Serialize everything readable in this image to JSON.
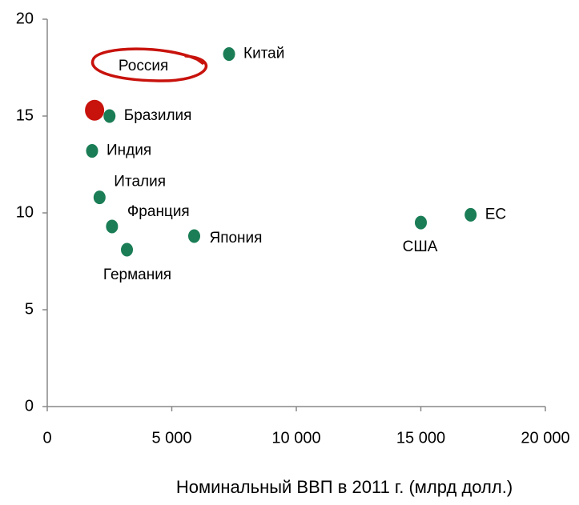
{
  "chart_data": {
    "type": "scatter",
    "x_label": "Номинальный ВВП в 2011 г. (млрд долл.)",
    "labels": [
      "Китай",
      "Россия",
      "Бразилия",
      "Индия",
      "Италия",
      "Франция",
      "Германия",
      "Япония",
      "США",
      "ЕС"
    ],
    "x": [
      7300,
      1900,
      2500,
      1800,
      2100,
      2600,
      3200,
      5900,
      15000,
      17000
    ],
    "y": [
      18.2,
      15.3,
      15.0,
      13.2,
      10.8,
      9.3,
      8.1,
      8.8,
      9.5,
      9.9
    ],
    "colors": [
      "#1a7d56",
      "#c8120c",
      "#1a7d56",
      "#1a7d56",
      "#1a7d56",
      "#1a7d56",
      "#1a7d56",
      "#1a7d56",
      "#1a7d56",
      "#1a7d56"
    ],
    "xlim": [
      0,
      20000
    ],
    "xticks": [
      0,
      {
        "value": 5000,
        "label": "5 000"
      },
      {
        "value": 10000,
        "label": "10 000"
      },
      {
        "value": 15000,
        "label": "15 000"
      },
      {
        "value": 20000,
        "label": "20 000"
      }
    ],
    "ylim": [
      0,
      20
    ],
    "yticks": [
      0,
      5,
      10,
      15,
      20
    ]
  }
}
